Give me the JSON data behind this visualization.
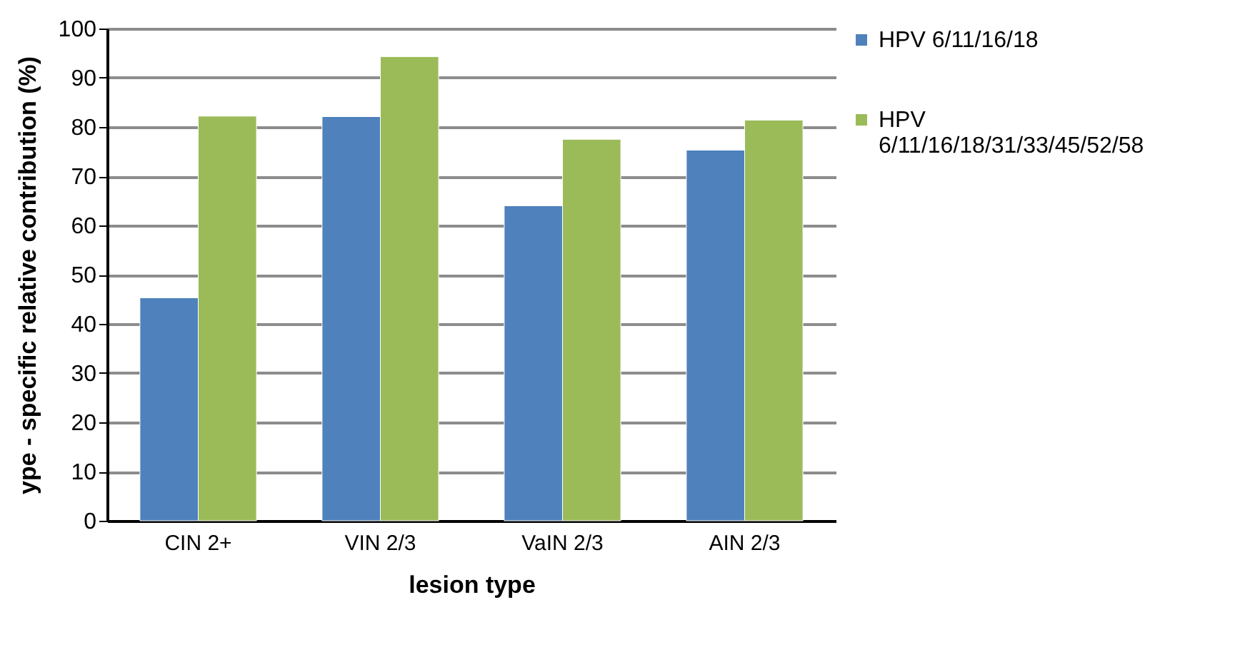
{
  "chart_data": {
    "type": "bar",
    "categories": [
      "CIN 2+",
      "VIN 2/3",
      "VaIN 2/3",
      "AIN 2/3"
    ],
    "xlabel": "lesion type",
    "ylabel": "ype - specific relative contribution (%)",
    "series": [
      {
        "name": "HPV 6/11/16/18",
        "color": "#4f81bd",
        "values": [
          45.3,
          82.1,
          64.0,
          75.3
        ]
      },
      {
        "name": "HPV 6/11/16/18/31/33/45/52/58",
        "color": "#9bbb59",
        "values": [
          82.2,
          94.3,
          77.5,
          81.4
        ]
      }
    ],
    "ylim": [
      0,
      100
    ],
    "yticks": [
      0,
      10,
      20,
      30,
      40,
      50,
      60,
      70,
      80,
      90,
      100
    ],
    "grid": "y",
    "legend": "right"
  }
}
